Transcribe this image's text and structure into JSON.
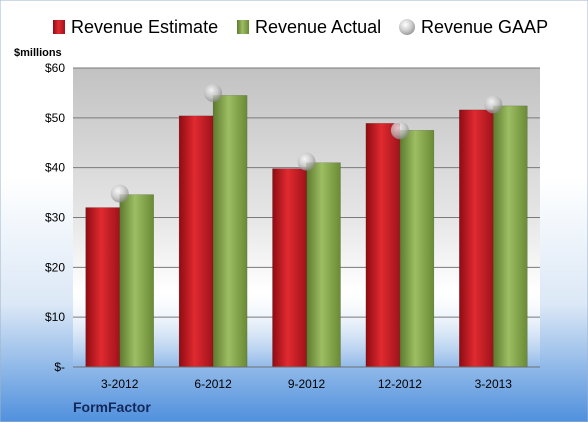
{
  "chart_data": {
    "type": "bar",
    "categories": [
      "3-2012",
      "6-2012",
      "9-2012",
      "12-2012",
      "3-2013"
    ],
    "series": [
      {
        "name": "Revenue Estimate",
        "kind": "bar",
        "color": "#C0141C",
        "values": [
          32.0,
          50.4,
          39.8,
          48.9,
          51.6
        ]
      },
      {
        "name": "Revenue Actual",
        "kind": "bar",
        "color": "#7E9E45",
        "values": [
          34.6,
          54.5,
          41.0,
          47.5,
          52.4
        ]
      },
      {
        "name": "Revenue GAAP",
        "kind": "marker",
        "color": "#C8C8C8",
        "values": [
          34.8,
          55.0,
          41.2,
          47.5,
          52.7
        ]
      }
    ],
    "ylabel": "$millions",
    "ylim": [
      0,
      60
    ],
    "yticks": [
      0,
      10,
      20,
      30,
      40,
      50,
      60
    ],
    "ytick_labels": [
      "$-",
      "$10",
      "$20",
      "$30",
      "$40",
      "$50",
      "$60"
    ],
    "grid": true,
    "legend_position": "top"
  },
  "company": "FormFactor"
}
